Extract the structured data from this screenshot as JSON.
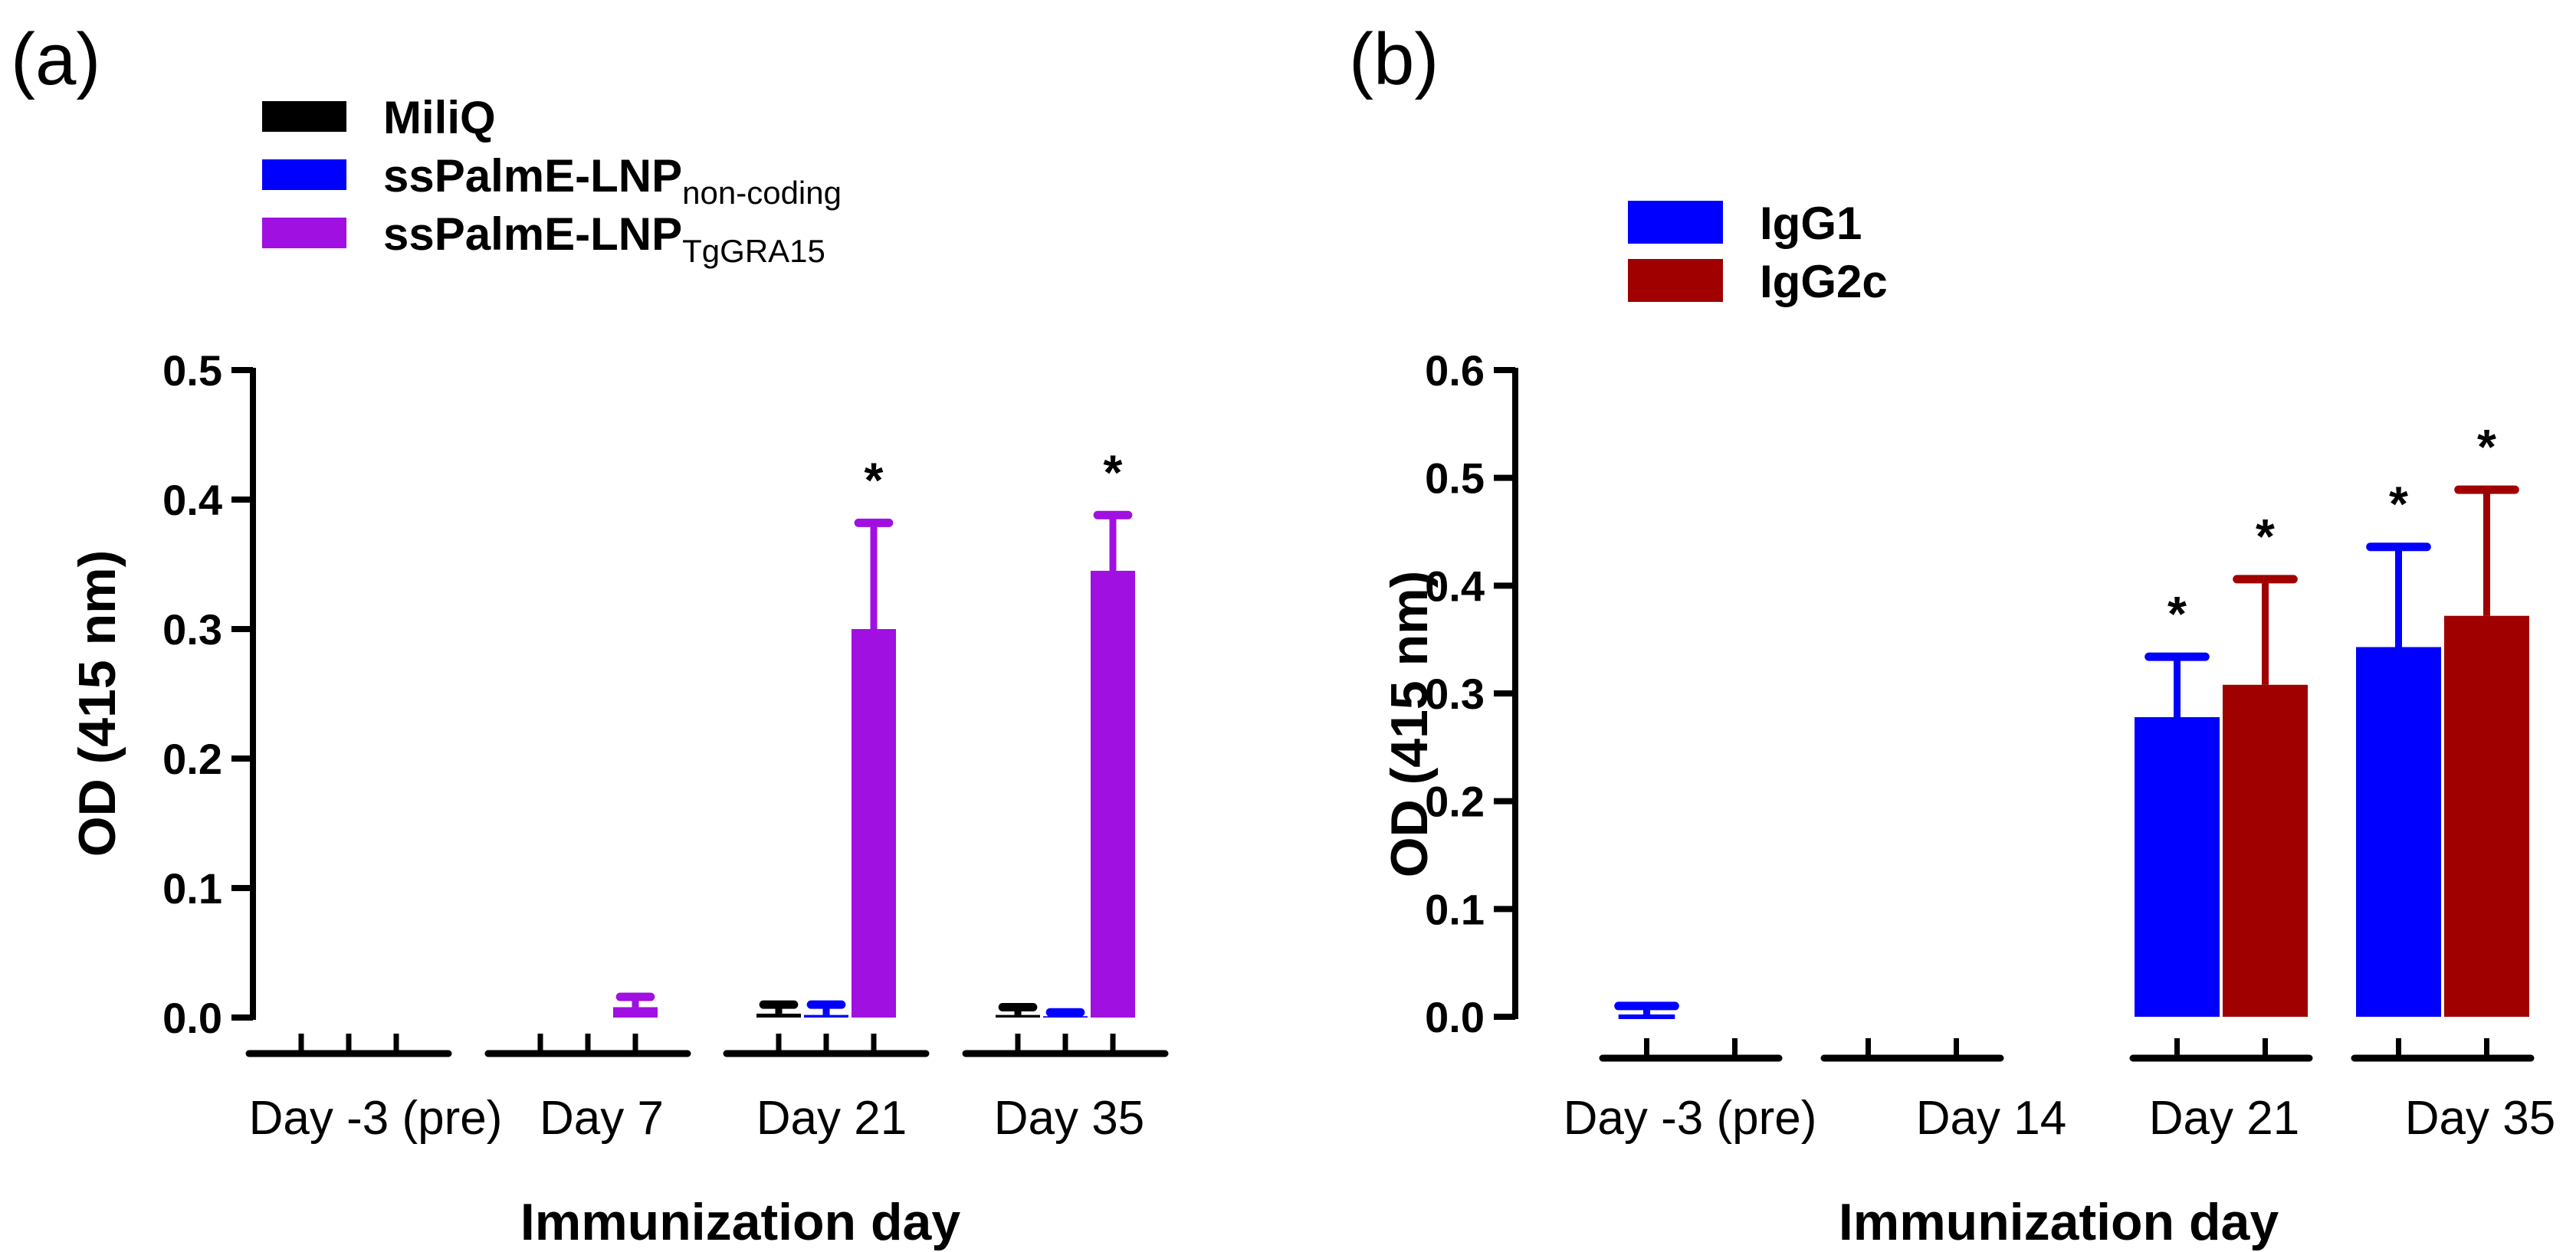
{
  "colors": {
    "miliq": "#000000",
    "noncoding": "#0000ff",
    "tggra15": "#a010e0",
    "igg1": "#0000ff",
    "igg2c": "#a00000"
  },
  "chart_data": [
    {
      "type": "bar",
      "panel_label": "(a)",
      "xlabel": "Immunization day",
      "ylabel": "OD (415 nm)",
      "ylim": [
        0,
        0.5
      ],
      "yticks": [
        "0.0",
        "0.1",
        "0.2",
        "0.3",
        "0.4",
        "0.5"
      ],
      "categories": [
        "Day -3 (pre)",
        "Day 7",
        "Day 21",
        "Day 35"
      ],
      "legend_position": "top-left",
      "series": [
        {
          "name": "MiliQ",
          "subscript": "",
          "color": "#000000",
          "values": [
            0.0,
            0.0,
            0.003,
            0.002
          ],
          "errors": [
            0.0,
            0.0,
            0.007,
            0.006
          ],
          "significant": [
            false,
            false,
            false,
            false
          ]
        },
        {
          "name": "ssPalmE-LNP",
          "subscript": "non-coding",
          "color": "#0000ff",
          "values": [
            0.0,
            0.0,
            0.002,
            0.001
          ],
          "errors": [
            0.0,
            0.0,
            0.008,
            0.003
          ],
          "significant": [
            false,
            false,
            false,
            false
          ]
        },
        {
          "name": "ssPalmE-LNP",
          "subscript": "TgGRA15",
          "color": "#a010e0",
          "values": [
            0.0,
            0.008,
            0.3,
            0.345
          ],
          "errors": [
            0.0,
            0.008,
            0.082,
            0.043
          ],
          "significant": [
            false,
            false,
            true,
            true
          ]
        }
      ],
      "significance_marker": "*"
    },
    {
      "type": "bar",
      "panel_label": "(b)",
      "xlabel": "Immunization day",
      "ylabel": "OD (415 nm)",
      "ylim": [
        0,
        0.6
      ],
      "yticks": [
        "0.0",
        "0.1",
        "0.2",
        "0.3",
        "0.4",
        "0.5",
        "0.6"
      ],
      "categories": [
        "Day -3 (pre)",
        "Day 14",
        "Day 21",
        "Day 35"
      ],
      "legend_position": "top-left",
      "series": [
        {
          "name": "IgG1",
          "subscript": "",
          "color": "#0000ff",
          "values": [
            0.0,
            0.0,
            0.278,
            0.343
          ],
          "errors": [
            0.01,
            0.0,
            0.056,
            0.093
          ],
          "significant": [
            false,
            false,
            true,
            true
          ]
        },
        {
          "name": "IgG2c",
          "subscript": "",
          "color": "#a00000",
          "values": [
            0.0,
            0.0,
            0.308,
            0.372
          ],
          "errors": [
            0.0,
            0.0,
            0.098,
            0.117
          ],
          "significant": [
            false,
            false,
            true,
            true
          ]
        }
      ],
      "significance_marker": "*"
    }
  ]
}
